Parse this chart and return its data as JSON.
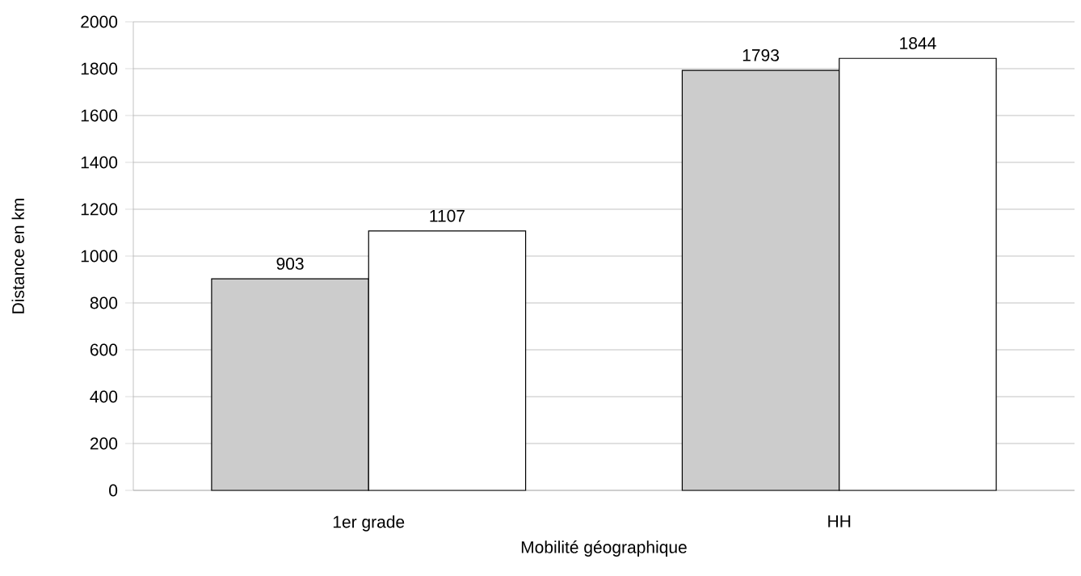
{
  "chart_data": {
    "type": "bar",
    "xlabel": "Mobilité géographique",
    "ylabel": "Distance en km",
    "categories": [
      "1er grade",
      "HH"
    ],
    "series": [
      {
        "color": "#cccccc",
        "values": [
          903,
          1793
        ]
      },
      {
        "color": "#ffffff",
        "values": [
          1107,
          1844
        ]
      }
    ],
    "ylim": [
      0,
      2000
    ],
    "yticks": [
      0,
      200,
      400,
      600,
      800,
      1000,
      1200,
      1400,
      1600,
      1800,
      2000
    ],
    "grid": "y",
    "data_labels": true
  }
}
